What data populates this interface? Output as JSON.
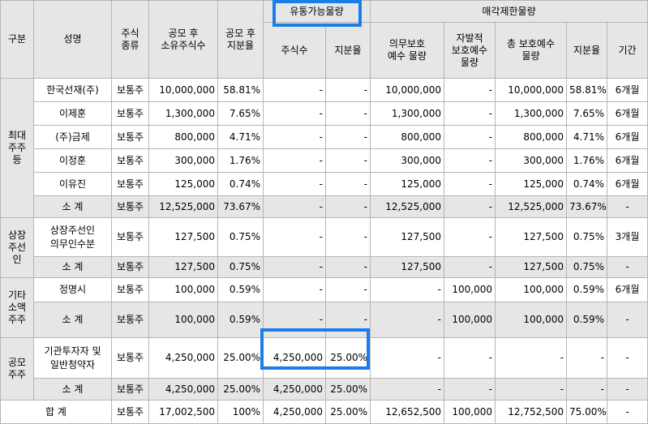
{
  "header": {
    "gubun": "구분",
    "name": "성명",
    "stock_type": "주식\n종류",
    "shares_post": "공모 후\n소유주식수",
    "ratio_post": "공모 후\n지분율",
    "tradable_group": "유통가능물량",
    "tradable_shares": "주식수",
    "tradable_ratio": "지분율",
    "restricted_group": "매각제한물량",
    "mandatory": "의무보호\n예수 물량",
    "voluntary": "자발적\n보호예수\n물량",
    "total_protect": "총 보호예수\n물량",
    "restricted_ratio": "지분율",
    "period": "기간"
  },
  "groups": [
    {
      "label": "최대\n주주\n등",
      "rows": [
        [
          "한국선재(주)",
          "보통주",
          "10,000,000",
          "58.81%",
          "-",
          "-",
          "10,000,000",
          "-",
          "10,000,000",
          "58.81%",
          "6개월"
        ],
        [
          "이제훈",
          "보통주",
          "1,300,000",
          "7.65%",
          "-",
          "-",
          "1,300,000",
          "-",
          "1,300,000",
          "7.65%",
          "6개월"
        ],
        [
          "(주)금제",
          "보통주",
          "800,000",
          "4.71%",
          "-",
          "-",
          "800,000",
          "-",
          "800,000",
          "4.71%",
          "6개월"
        ],
        [
          "이정훈",
          "보통주",
          "300,000",
          "1.76%",
          "-",
          "-",
          "300,000",
          "-",
          "300,000",
          "1.76%",
          "6개월"
        ],
        [
          "이유진",
          "보통주",
          "125,000",
          "0.74%",
          "-",
          "-",
          "125,000",
          "-",
          "125,000",
          "0.74%",
          "6개월"
        ]
      ],
      "subtotal": [
        "소 계",
        "보통주",
        "12,525,000",
        "73.67%",
        "-",
        "-",
        "12,525,000",
        "-",
        "12,525,000",
        "73.67%",
        "-"
      ]
    },
    {
      "label": "상장\n주선\n인",
      "rows": [
        [
          "상장주선인\n의무인수분",
          "보통주",
          "127,500",
          "0.75%",
          "-",
          "-",
          "127,500",
          "-",
          "127,500",
          "0.75%",
          "3개월"
        ]
      ],
      "subtotal": [
        "소 계",
        "보통주",
        "127,500",
        "0.75%",
        "-",
        "-",
        "127,500",
        "-",
        "127,500",
        "0.75%",
        "-"
      ]
    },
    {
      "label": "기타\n소액\n주주",
      "rows": [
        [
          "정명시",
          "보통주",
          "100,000",
          "0.59%",
          "-",
          "-",
          "-",
          "100,000",
          "100,000",
          "0.59%",
          "6개월"
        ]
      ],
      "subtotal": [
        "소 계",
        "보통주",
        "100,000",
        "0.59%",
        "-",
        "-",
        "-",
        "100,000",
        "100,000",
        "0.59%",
        "-"
      ]
    },
    {
      "label": "공모\n주주",
      "rows": [
        [
          "기관투자자 및\n일반청약자",
          "보통주",
          "4,250,000",
          "25.00%",
          "4,250,000",
          "25.00%",
          "-",
          "-",
          "-",
          "-",
          "-"
        ]
      ],
      "subtotal": [
        "소 계",
        "보통주",
        "4,250,000",
        "25.00%",
        "4,250,000",
        "25.00%",
        "-",
        "-",
        "-",
        "-",
        "-"
      ]
    }
  ],
  "total": [
    "합 계",
    "보통주",
    "17,002,500",
    "100%",
    "4,250,000",
    "25.00%",
    "12,652,500",
    "100,000",
    "12,752,500",
    "75.00%",
    "-"
  ],
  "highlight_color": "#1a7ee8"
}
